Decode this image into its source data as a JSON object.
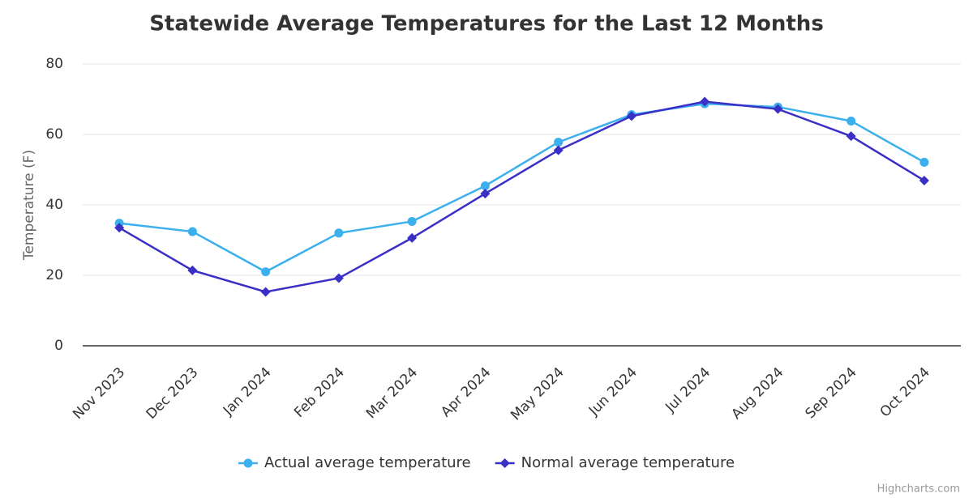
{
  "chart_data": {
    "type": "line",
    "title": "Statewide Average Temperatures for the Last 12 Months",
    "y_label": "Temperature (F)",
    "categories": [
      "Nov 2023",
      "Dec 2023",
      "Jan 2024",
      "Feb 2024",
      "Mar 2024",
      "Apr 2024",
      "May 2024",
      "Jun 2024",
      "Jul 2024",
      "Aug 2024",
      "Sep 2024",
      "Oct 2024"
    ],
    "series": [
      {
        "name": "Actual average temperature",
        "color": "#3cb0ec",
        "marker": "circle",
        "values": [
          34.8,
          32.4,
          21,
          32,
          35.3,
          45.4,
          57.8,
          65.6,
          68.7,
          67.8,
          63.8,
          52.1
        ]
      },
      {
        "name": "Normal average temperature",
        "color": "#3a2fc6",
        "marker": "diamond",
        "values": [
          33.5,
          21.4,
          15.3,
          19.2,
          30.6,
          43.2,
          55.5,
          65.2,
          69.3,
          67.2,
          59.5,
          46.9
        ]
      }
    ],
    "ylim": [
      0,
      80
    ],
    "yticks": [
      0,
      20,
      40,
      60,
      80
    ],
    "grid": true,
    "legend": "bottom",
    "credits": "Highcharts.com"
  }
}
